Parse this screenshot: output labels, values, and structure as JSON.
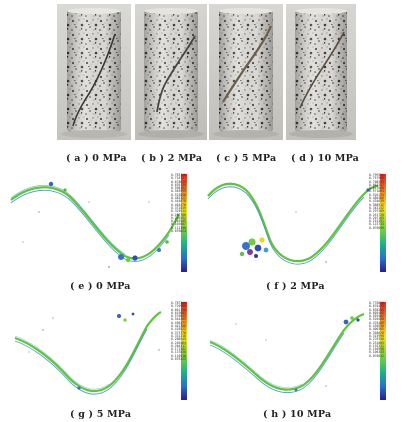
{
  "photos": [
    {
      "label": "( a ) 0 MPa"
    },
    {
      "label": "( b ) 2 MPa"
    },
    {
      "label": "( c ) 5 MPa"
    },
    {
      "label": "( d ) 10 MPa"
    }
  ],
  "scans": [
    {
      "label": "( e ) 0 MPa",
      "ticks": [
        "0.763128",
        "0.71871",
        "0.678619",
        "0.639139",
        "0.598182",
        "0.563999",
        "0.523858",
        "0.485322",
        "0.444878",
        "0.403478",
        "0.372839",
        "0.325912",
        "0.286780",
        "0.246592",
        "0.203585",
        "0.165007",
        "0.112390",
        "0.076024"
      ]
    },
    {
      "label": "( f ) 2 MPa",
      "ticks": [
        "0.799321",
        "0.757900",
        "0.708399",
        "0.663357",
        "0.617600",
        "0.571884",
        "0.526133",
        "0.480380",
        "0.434639",
        "0.388912",
        "0.343152",
        "0.297389",
        "0.251720",
        "0.207105",
        "0.161391",
        "0.115733",
        "0.076649"
      ]
    },
    {
      "label": "( g ) 5 MPa",
      "ticks": [
        "0.787260",
        "0.720985",
        "0.661198",
        "0.619802",
        "0.576833",
        "0.544405",
        "0.490377",
        "0.461308",
        "0.418522",
        "0.373778",
        "0.331318",
        "0.288945",
        "0.246484",
        "0.204317",
        "0.171502",
        "0.137836",
        "0.110918",
        "0.076323"
      ]
    },
    {
      "label": "( h ) 10 MPa",
      "ticks": [
        "0.776816",
        "0.676423",
        "0.638308",
        "0.605405",
        "0.559482",
        "0.520408",
        "0.476489",
        "0.430930",
        "0.400305",
        "0.358028",
        "0.315990",
        "0.276350",
        "0.231005",
        "0.192311",
        "0.150998",
        "0.106333",
        "0.076612"
      ]
    }
  ]
}
